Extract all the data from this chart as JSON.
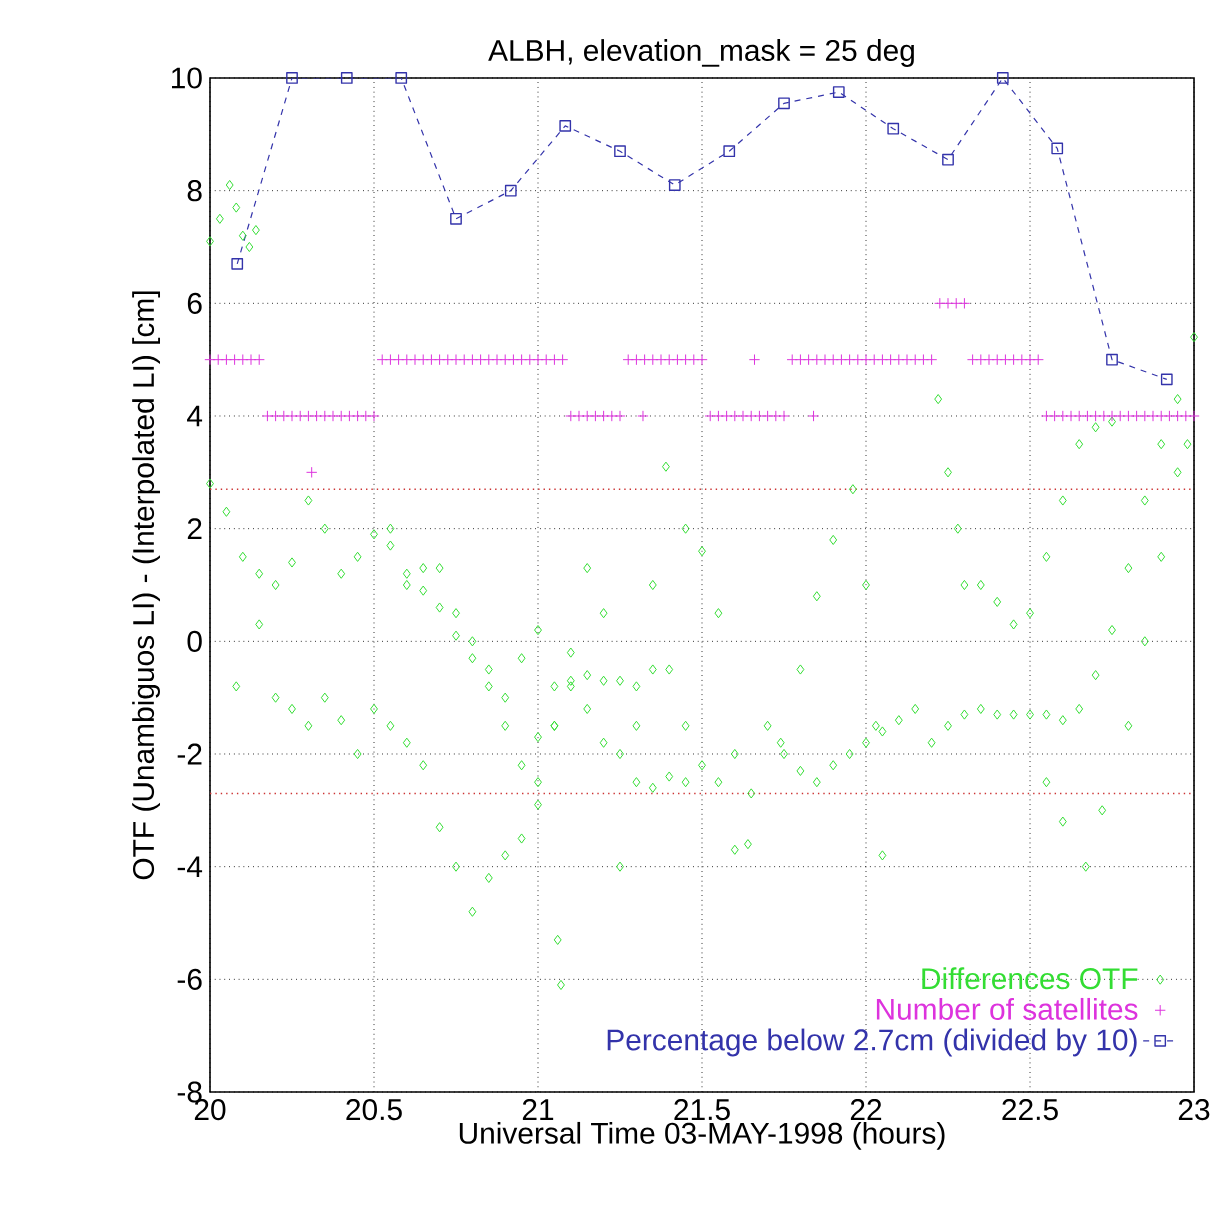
{
  "chart_data": {
    "type": "scatter",
    "title": "ALBH, elevation_mask =  25 deg",
    "xlabel": "Universal Time 03-MAY-1998 (hours)",
    "ylabel": "OTF (Unambiguos LI) - (Interpolated LI) [cm]",
    "xlim": [
      20,
      23
    ],
    "ylim": [
      -8,
      10
    ],
    "xticks": [
      20,
      20.5,
      21,
      21.5,
      22,
      22.5,
      23
    ],
    "yticks": [
      -8,
      -6,
      -4,
      -2,
      0,
      2,
      4,
      6,
      8,
      10
    ],
    "grid": true,
    "legend": "bottom right",
    "ref_lines": [
      {
        "axis": "y",
        "value": 2.7,
        "color": "#cc3333",
        "line_style": "dotted"
      },
      {
        "axis": "y",
        "value": -2.7,
        "color": "#cc3333",
        "line_style": "dotted"
      }
    ],
    "series": [
      {
        "name": "Differences OTF",
        "marker": "diamond",
        "color": "#33dd33",
        "x": [
          20.0,
          20.03,
          20.06,
          20.08,
          20.1,
          20.12,
          20.14,
          20.0,
          20.05,
          20.1,
          20.15,
          20.2,
          20.25,
          20.3,
          20.35,
          20.4,
          20.45,
          20.5,
          20.55,
          20.6,
          20.65,
          20.7,
          20.75,
          20.8,
          20.85,
          20.9,
          20.95,
          21.0,
          20.15,
          20.2,
          20.25,
          20.3,
          20.35,
          20.4,
          20.45,
          20.5,
          20.55,
          20.6,
          20.65,
          20.7,
          20.75,
          20.8,
          20.85,
          20.9,
          20.95,
          21.0,
          21.05,
          21.1,
          21.15,
          21.2,
          21.25,
          21.3,
          21.35,
          21.4,
          21.45,
          21.5,
          21.55,
          21.6,
          21.65,
          21.7,
          21.75,
          21.8,
          21.85,
          21.9,
          21.95,
          22.0,
          22.05,
          22.1,
          22.15,
          22.2,
          22.25,
          22.3,
          22.35,
          22.4,
          22.45,
          22.5,
          22.55,
          22.6,
          22.65,
          22.7,
          22.75,
          22.8,
          22.85,
          22.9,
          22.95,
          23.0,
          20.55,
          20.6,
          20.65,
          20.7,
          20.75,
          20.8,
          20.85,
          20.9,
          20.95,
          21.0,
          21.05,
          21.1,
          21.15,
          21.2,
          21.25,
          21.3,
          21.35,
          21.4,
          21.45,
          21.0,
          21.05,
          21.1,
          21.15,
          21.2,
          21.25,
          21.3,
          21.35,
          21.39,
          21.45,
          21.5,
          21.55,
          21.6,
          21.64,
          21.74,
          21.8,
          21.85,
          21.9,
          21.96,
          22.0,
          22.03,
          22.05,
          22.22,
          22.25,
          22.28,
          22.3,
          22.35,
          22.4,
          22.45,
          22.5,
          22.55,
          22.6,
          22.65,
          22.7,
          22.75,
          22.55,
          22.6,
          22.67,
          22.72,
          22.8,
          22.85,
          22.9,
          22.95,
          22.98,
          20.08,
          21.07,
          21.06
        ],
        "values": [
          7.1,
          7.5,
          8.1,
          7.7,
          7.2,
          7.0,
          7.3,
          2.8,
          2.3,
          1.5,
          1.2,
          1.0,
          1.4,
          2.5,
          2.0,
          1.2,
          1.5,
          1.9,
          1.7,
          1.0,
          1.3,
          0.6,
          0.1,
          0.0,
          -0.5,
          -1.0,
          -0.3,
          0.2,
          0.3,
          -1.0,
          -1.2,
          -1.5,
          -1.0,
          -1.4,
          -2.0,
          -1.2,
          -1.5,
          -1.8,
          -2.2,
          -3.3,
          -4.0,
          -4.8,
          -4.2,
          -3.8,
          -3.5,
          -2.5,
          -1.5,
          -0.8,
          -0.6,
          -0.7,
          -0.7,
          -0.8,
          -0.5,
          -0.5,
          -1.5,
          -2.2,
          -2.5,
          -3.7,
          -2.7,
          -1.5,
          -2.0,
          -2.3,
          -2.5,
          -2.2,
          -2.0,
          -1.8,
          -1.6,
          -1.4,
          -1.2,
          -1.8,
          -1.5,
          -1.3,
          -1.2,
          -1.3,
          -1.3,
          -1.3,
          -1.3,
          -1.4,
          -1.2,
          -0.6,
          0.2,
          1.3,
          2.5,
          3.5,
          4.3,
          5.4,
          2.0,
          1.2,
          0.9,
          1.3,
          0.5,
          -0.3,
          -0.8,
          -1.5,
          -2.2,
          -1.7,
          -0.8,
          -0.7,
          -1.2,
          -1.8,
          -2.0,
          -2.5,
          -2.6,
          -2.4,
          -2.5,
          -2.9,
          -1.5,
          -0.2,
          1.3,
          0.5,
          -4.0,
          -1.5,
          1.0,
          3.1,
          2.0,
          1.6,
          0.5,
          -2.0,
          -3.6,
          -1.8,
          -0.5,
          0.8,
          1.8,
          2.7,
          1.0,
          -1.5,
          -3.8,
          4.3,
          3.0,
          2.0,
          1.0,
          1.0,
          0.7,
          0.3,
          0.5,
          1.5,
          2.5,
          3.5,
          3.8,
          3.9,
          -2.5,
          -3.2,
          -4.0,
          -3.0,
          -1.5,
          0.0,
          1.5,
          3.0,
          3.5,
          -0.8,
          -6.1,
          -5.3
        ]
      },
      {
        "name": "Number of satellites",
        "marker": "cross",
        "color": "#dd33dd",
        "x": [
          20.0,
          20.025,
          20.05,
          20.075,
          20.1,
          20.125,
          20.15,
          20.175,
          20.2,
          20.225,
          20.25,
          20.275,
          20.3,
          20.325,
          20.35,
          20.375,
          20.4,
          20.425,
          20.45,
          20.475,
          20.5,
          20.31,
          20.525,
          20.55,
          20.575,
          20.6,
          20.625,
          20.65,
          20.675,
          20.7,
          20.725,
          20.75,
          20.775,
          20.8,
          20.825,
          20.85,
          20.875,
          20.9,
          20.925,
          20.95,
          20.975,
          21.0,
          21.025,
          21.05,
          21.075,
          21.1,
          21.125,
          21.15,
          21.175,
          21.2,
          21.225,
          21.25,
          21.32,
          21.275,
          21.3,
          21.325,
          21.35,
          21.375,
          21.4,
          21.425,
          21.45,
          21.475,
          21.5,
          21.525,
          21.55,
          21.575,
          21.6,
          21.625,
          21.65,
          21.675,
          21.7,
          21.725,
          21.75,
          21.84,
          21.66,
          21.775,
          21.8,
          21.825,
          21.85,
          21.875,
          21.9,
          21.925,
          21.95,
          21.975,
          22.0,
          22.025,
          22.05,
          22.075,
          22.1,
          22.125,
          22.15,
          22.175,
          22.2,
          22.225,
          22.25,
          22.275,
          22.3,
          22.325,
          22.35,
          22.375,
          22.4,
          22.425,
          22.45,
          22.475,
          22.5,
          22.525,
          22.55,
          22.575,
          22.6,
          22.625,
          22.65,
          22.675,
          22.7,
          22.725,
          22.75,
          22.775,
          22.8,
          22.825,
          22.85,
          22.875,
          22.9,
          22.925,
          22.95,
          22.975,
          23.0
        ],
        "values": [
          5,
          5,
          5,
          5,
          5,
          5,
          5,
          4,
          4,
          4,
          4,
          4,
          4,
          4,
          4,
          4,
          4,
          4,
          4,
          4,
          4,
          3,
          5,
          5,
          5,
          5,
          5,
          5,
          5,
          5,
          5,
          5,
          5,
          5,
          5,
          5,
          5,
          5,
          5,
          5,
          5,
          5,
          5,
          5,
          5,
          4,
          4,
          4,
          4,
          4,
          4,
          4,
          4,
          5,
          5,
          5,
          5,
          5,
          5,
          5,
          5,
          5,
          5,
          4,
          4,
          4,
          4,
          4,
          4,
          4,
          4,
          4,
          4,
          4,
          5,
          5,
          5,
          5,
          5,
          5,
          5,
          5,
          5,
          5,
          5,
          5,
          5,
          5,
          5,
          5,
          5,
          5,
          5,
          6,
          6,
          6,
          6,
          5,
          5,
          5,
          5,
          5,
          5,
          5,
          5,
          5,
          4,
          4,
          4,
          4,
          4,
          4,
          4,
          4,
          4,
          4,
          4,
          4,
          4,
          4,
          4,
          4,
          4,
          4,
          4
        ]
      },
      {
        "name": "Percentage below 2.7cm (divided by 10)",
        "type": "line",
        "marker": "square",
        "line_style": "dashed",
        "color": "#3333aa",
        "x": [
          20.083,
          20.25,
          20.417,
          20.583,
          20.75,
          20.917,
          21.083,
          21.25,
          21.417,
          21.583,
          21.75,
          21.917,
          22.083,
          22.25,
          22.417,
          22.583,
          22.75,
          22.917
        ],
        "values": [
          6.7,
          10,
          10,
          10,
          7.5,
          8.0,
          9.15,
          8.7,
          8.1,
          8.7,
          9.55,
          9.75,
          9.1,
          8.55,
          10,
          8.75,
          5.0,
          4.65
        ]
      }
    ]
  }
}
